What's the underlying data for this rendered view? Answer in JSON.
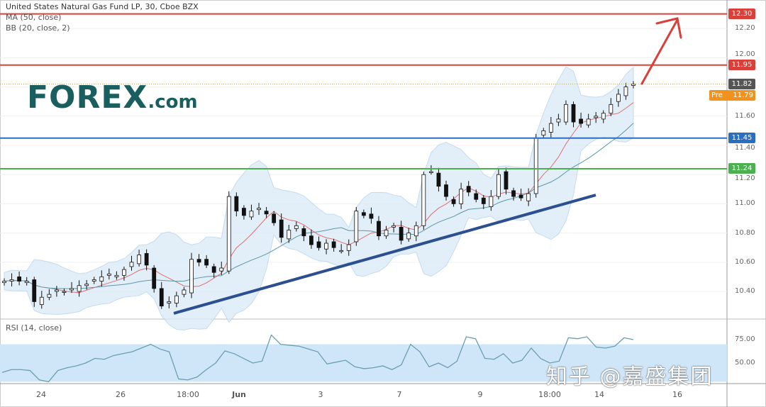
{
  "header": {
    "title": "United States Natural Gas Fund LP, 30, Cboe BZX",
    "ma_label": "MA (50, close)",
    "bb_label": "BB (20, close, 2)"
  },
  "logo": {
    "text": "FOREX",
    "suffix": ".com"
  },
  "watermark": "知乎 @嘉盛集团",
  "colors": {
    "up": "#ffffff",
    "down": "#111111",
    "bb_fill": "#dbeaf7",
    "bb_mid": "#e07070",
    "ma": "#5a9aa8",
    "trend": "#2b4f8f",
    "arrow": "#d9403a",
    "rsi": "#6a9fb0",
    "rsi_band": "#cfe6f8"
  },
  "chart_data": [
    {
      "type": "candlestick",
      "title": "United States Natural Gas Fund LP, 30, Cboe BZX",
      "ylim": [
        10.25,
        12.35
      ],
      "y_ticks": [
        "12.20",
        "12.00",
        "11.60",
        "11.40",
        "11.20",
        "11.00",
        "10.80",
        "10.60",
        "10.40"
      ],
      "x_ticks": [
        "24",
        "26",
        "18:00",
        "Jun",
        "3",
        "7",
        "9",
        "18:00",
        "14",
        "16"
      ],
      "closes": [
        10.47,
        10.48,
        10.47,
        10.47,
        10.33,
        10.36,
        10.38,
        10.41,
        10.4,
        10.42,
        10.44,
        10.45,
        10.48,
        10.5,
        10.52,
        10.51,
        10.55,
        10.6,
        10.65,
        10.58,
        10.42,
        10.3,
        10.33,
        10.37,
        10.41,
        10.62,
        10.6,
        10.58,
        10.53,
        10.56,
        11.05,
        10.95,
        10.92,
        10.95,
        10.97,
        10.93,
        10.87,
        10.77,
        10.82,
        10.85,
        10.78,
        10.72,
        10.7,
        10.73,
        10.7,
        10.68,
        10.72,
        10.95,
        10.92,
        10.9,
        10.78,
        10.82,
        10.85,
        10.75,
        10.8,
        10.85,
        11.2,
        11.22,
        11.12,
        11.05,
        11.0,
        11.1,
        11.08,
        11.03,
        11.0,
        11.05,
        11.2,
        11.1,
        11.05,
        11.04,
        11.07,
        11.45,
        11.5,
        11.55,
        11.58,
        11.68,
        11.56,
        11.55,
        11.58,
        11.6,
        11.62,
        11.68,
        11.75,
        11.8,
        11.82
      ],
      "levels": [
        {
          "label": "12.30",
          "value": 12.3,
          "color": "#d9403a"
        },
        {
          "label": "11.95",
          "value": 11.95,
          "color": "#d9403a"
        },
        {
          "label": "11.45",
          "value": 11.45,
          "color": "#2a6fbf"
        },
        {
          "label": "11.24",
          "value": 11.24,
          "color": "#4caf50"
        }
      ],
      "last_price": {
        "label": "11.82",
        "value": 11.82,
        "color": "#555555"
      },
      "pre_market": {
        "prefix": "Pre",
        "label": "11.79",
        "value": 11.79,
        "color": "#f0921e"
      },
      "trendline": {
        "from": 10.25,
        "to": 11.06
      }
    },
    {
      "type": "line",
      "title": "RSI (14, close)",
      "ylim": [
        25,
        85
      ],
      "y_ticks": [
        "75.00",
        "50.00"
      ],
      "band": [
        30,
        70
      ],
      "values": [
        40,
        43,
        43,
        42,
        32,
        30,
        42,
        45,
        47,
        50,
        55,
        54,
        58,
        60,
        62,
        66,
        70,
        65,
        62,
        33,
        32,
        35,
        43,
        50,
        63,
        60,
        55,
        50,
        52,
        80,
        70,
        69,
        68,
        65,
        62,
        49,
        51,
        53,
        46,
        44,
        45,
        47,
        43,
        48,
        70,
        62,
        46,
        50,
        45,
        52,
        78,
        76,
        55,
        54,
        60,
        50,
        53,
        66,
        55,
        50,
        52,
        77,
        76,
        78,
        67,
        66,
        68,
        77,
        75
      ]
    }
  ]
}
